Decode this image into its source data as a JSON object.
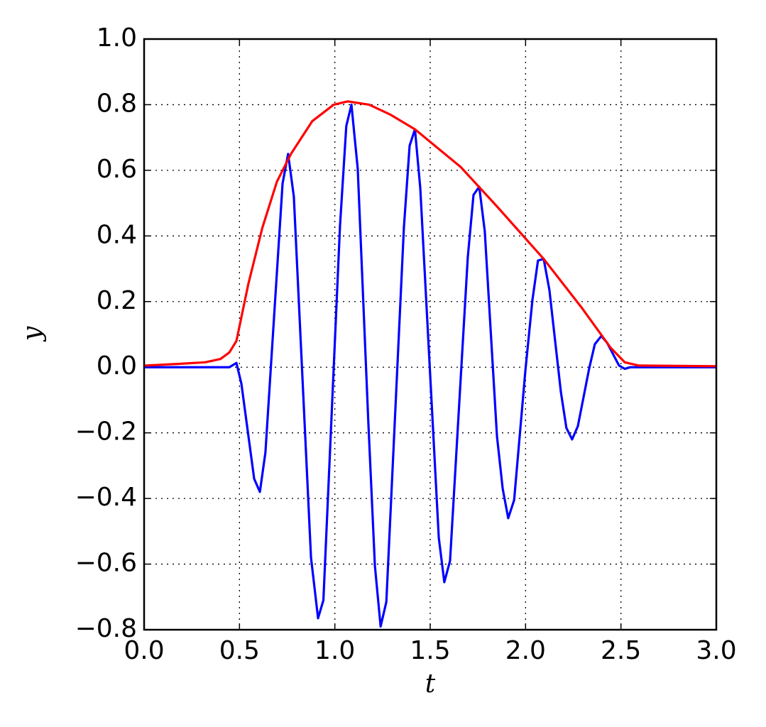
{
  "chart_data": {
    "type": "line",
    "xlabel": "t",
    "ylabel": "y",
    "xlim": [
      0,
      3
    ],
    "ylim": [
      -0.8,
      1.0
    ],
    "xticks": [
      {
        "value": 0,
        "label": "0.0"
      },
      {
        "value": 0.5,
        "label": "0.5"
      },
      {
        "value": 1,
        "label": "1.0"
      },
      {
        "value": 1.5,
        "label": "1.5"
      },
      {
        "value": 2,
        "label": "2.0"
      },
      {
        "value": 2.5,
        "label": "2.5"
      },
      {
        "value": 3,
        "label": "3.0"
      }
    ],
    "yticks": [
      {
        "value": -0.8,
        "label": "−0.8"
      },
      {
        "value": -0.6,
        "label": "−0.6"
      },
      {
        "value": -0.4,
        "label": "−0.4"
      },
      {
        "value": -0.2,
        "label": "−0.2"
      },
      {
        "value": 0,
        "label": "0.0"
      },
      {
        "value": 0.2,
        "label": "0.2"
      },
      {
        "value": 0.4,
        "label": "0.4"
      },
      {
        "value": 0.6,
        "label": "0.6"
      },
      {
        "value": 0.8,
        "label": "0.8"
      },
      {
        "value": 1,
        "label": "1.0"
      }
    ],
    "grid": true,
    "series": [
      {
        "color": "#0000ff",
        "x": [
          0,
          0.447,
          0.484,
          0.51,
          0.577,
          0.607,
          0.636,
          0.726,
          0.755,
          0.785,
          0.875,
          0.912,
          0.94,
          1.027,
          1.06,
          1.087,
          1.12,
          1.175,
          1.21,
          1.24,
          1.27,
          1.362,
          1.392,
          1.42,
          1.448,
          1.545,
          1.574,
          1.604,
          1.697,
          1.727,
          1.757,
          1.786,
          1.85,
          1.88,
          1.909,
          1.94,
          1.999,
          2.036,
          2.065,
          2.095,
          2.125,
          2.185,
          2.214,
          2.244,
          2.274,
          2.333,
          2.363,
          2.397,
          2.427,
          2.49,
          2.52,
          2.55,
          3.0
        ],
        "values": [
          0,
          0,
          0.013,
          -0.05,
          -0.34,
          -0.38,
          -0.26,
          0.56,
          0.65,
          0.52,
          -0.58,
          -0.765,
          -0.71,
          0.43,
          0.735,
          0.8,
          0.605,
          -0.16,
          -0.605,
          -0.79,
          -0.715,
          0.425,
          0.675,
          0.725,
          0.545,
          -0.52,
          -0.655,
          -0.59,
          0.335,
          0.525,
          0.55,
          0.415,
          -0.21,
          -0.37,
          -0.46,
          -0.405,
          -0.01,
          0.205,
          0.325,
          0.33,
          0.235,
          -0.075,
          -0.185,
          -0.22,
          -0.18,
          -0.005,
          0.07,
          0.095,
          0.075,
          0.005,
          -0.005,
          0,
          0
        ]
      },
      {
        "color": "#ff0000",
        "x": [
          0,
          0.175,
          0.32,
          0.4,
          0.447,
          0.484,
          0.547,
          0.62,
          0.696,
          0.77,
          0.882,
          0.994,
          1.068,
          1.18,
          1.29,
          1.42,
          1.66,
          1.85,
          2.095,
          2.296,
          2.445,
          2.52,
          2.594,
          3.0
        ],
        "values": [
          0.005,
          0.01,
          0.015,
          0.025,
          0.045,
          0.08,
          0.255,
          0.425,
          0.565,
          0.65,
          0.75,
          0.8,
          0.81,
          0.8,
          0.77,
          0.725,
          0.61,
          0.49,
          0.33,
          0.18,
          0.06,
          0.015,
          0.005,
          0.003
        ]
      }
    ]
  }
}
